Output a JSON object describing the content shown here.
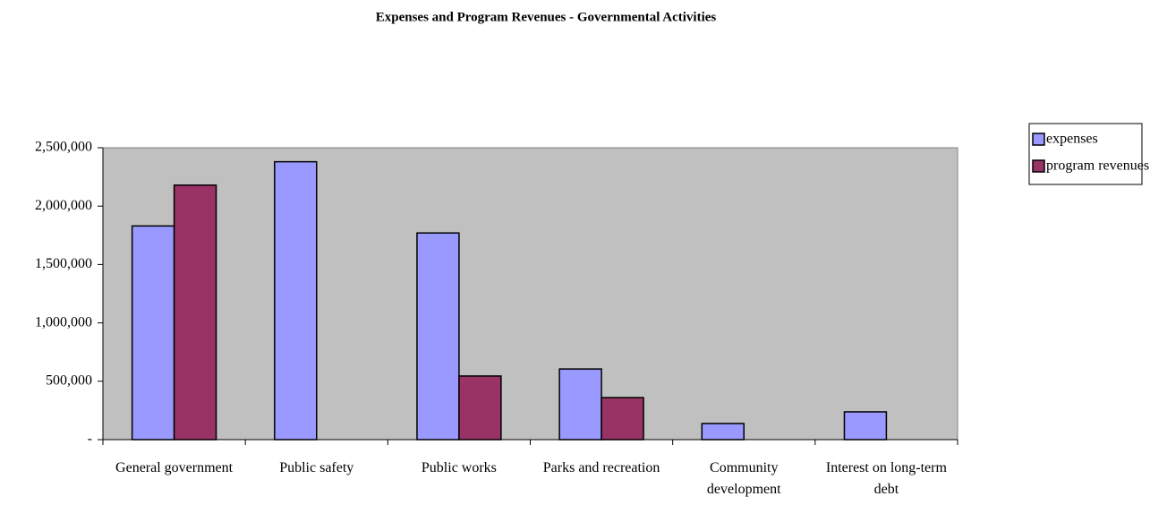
{
  "chart_data": {
    "type": "bar",
    "title": "Expenses and Program Revenues - Governmental Activities",
    "categories": [
      "General government",
      "Public safety",
      "Public works",
      "Parks and recreation",
      "Community development",
      "Interest on long-term debt"
    ],
    "series": [
      {
        "name": "expenses",
        "color": "#9999ff",
        "values": [
          1830000,
          2380000,
          1770000,
          605000,
          138000,
          238000
        ]
      },
      {
        "name": "program revenues",
        "color": "#993366",
        "values": [
          2180000,
          0,
          545000,
          360000,
          0,
          0
        ]
      }
    ],
    "ylim": [
      0,
      2500000
    ],
    "yticks": [
      {
        "value": 0,
        "label": "-"
      },
      {
        "value": 500000,
        "label": "500,000"
      },
      {
        "value": 1000000,
        "label": "1,000,000"
      },
      {
        "value": 1500000,
        "label": "1,500,000"
      },
      {
        "value": 2000000,
        "label": "2,000,000"
      },
      {
        "value": 2500000,
        "label": "2,500,000"
      }
    ],
    "legend": "top-right"
  }
}
